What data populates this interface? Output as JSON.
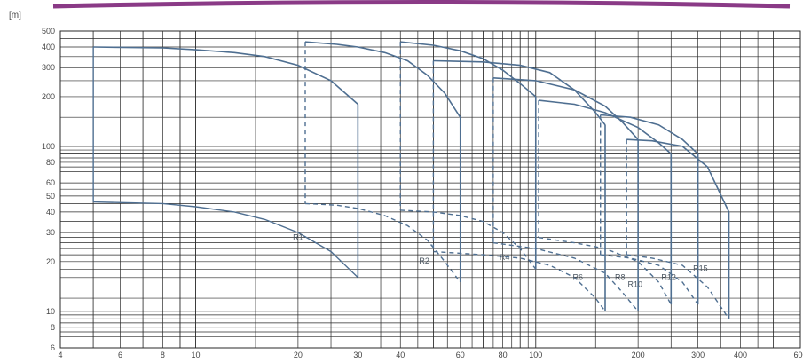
{
  "chart_data": {
    "type": "line",
    "title": "",
    "xlabel": "",
    "ylabel": "[m]",
    "x_scale": "log",
    "y_scale": "log",
    "xlim": [
      4,
      600
    ],
    "ylim": [
      6,
      500
    ],
    "x_ticks": [
      4,
      6,
      8,
      10,
      20,
      30,
      40,
      60,
      80,
      100,
      200,
      300,
      400,
      600
    ],
    "y_ticks": [
      6,
      8,
      10,
      20,
      30,
      40,
      50,
      60,
      80,
      100,
      200,
      300,
      400,
      500
    ],
    "grid": true,
    "legend": "none",
    "header_bar_color": "#8a3a86",
    "curve_color": "#4f6f91",
    "grid_color": "#2a2a2a",
    "series": [
      {
        "name": "R1",
        "label_at": [
          20,
          27
        ],
        "upper": {
          "x": [
            5,
            8,
            10,
            13,
            16,
            20,
            25,
            30
          ],
          "y": [
            400,
            395,
            385,
            370,
            350,
            310,
            250,
            180
          ]
        },
        "lower": {
          "x": [
            5,
            8,
            10,
            13,
            16,
            20,
            25,
            30
          ],
          "y": [
            46,
            45,
            43,
            40,
            36,
            30,
            23,
            16
          ]
        }
      },
      {
        "name": "R2",
        "label_at": [
          47,
          19.5
        ],
        "upper": {
          "x": [
            21,
            26,
            30,
            36,
            42,
            48,
            54,
            60
          ],
          "y": [
            430,
            415,
            400,
            370,
            330,
            270,
            210,
            150
          ]
        },
        "lower": {
          "x": [
            21,
            26,
            30,
            36,
            42,
            48,
            54,
            60
          ],
          "y": [
            45,
            44,
            42,
            38,
            33,
            27,
            20,
            15
          ]
        },
        "lower_dashed": true
      },
      {
        "name": "R4",
        "label_at": [
          81,
          20.5
        ],
        "upper": {
          "x": [
            40,
            50,
            60,
            70,
            80,
            90,
            100
          ],
          "y": [
            430,
            410,
            380,
            340,
            290,
            240,
            200
          ]
        },
        "lower": {
          "x": [
            40,
            50,
            60,
            70,
            80,
            90,
            100
          ],
          "y": [
            41,
            40,
            38,
            35,
            30,
            24,
            18
          ]
        },
        "lower_dashed": true
      },
      {
        "name": "R6",
        "label_at": [
          133,
          15.5
        ],
        "upper": {
          "x": [
            50,
            70,
            90,
            110,
            130,
            150,
            160
          ],
          "y": [
            330,
            325,
            310,
            280,
            220,
            160,
            135
          ]
        },
        "lower": {
          "x": [
            50,
            70,
            90,
            110,
            130,
            150,
            160
          ],
          "y": [
            23,
            22,
            21,
            19,
            16,
            12,
            10
          ]
        },
        "dashed_sides": true
      },
      {
        "name": "R8",
        "label_at": [
          177,
          15.5
        ],
        "upper": {
          "x": [
            75,
            100,
            130,
            160,
            180,
            200
          ],
          "y": [
            260,
            250,
            220,
            175,
            140,
            110
          ]
        },
        "lower": {
          "x": [
            75,
            100,
            130,
            160,
            180,
            200
          ],
          "y": [
            26,
            24,
            21,
            17,
            13,
            10
          ]
        },
        "dashed_sides": true
      },
      {
        "name": "R10",
        "label_at": [
          196,
          14
        ],
        "upper": {
          "x": [
            102,
            130,
            160,
            200,
            230,
            250
          ],
          "y": [
            190,
            180,
            160,
            130,
            105,
            90
          ]
        },
        "lower": {
          "x": [
            102,
            130,
            160,
            200,
            230,
            250
          ],
          "y": [
            28,
            26,
            24,
            20,
            15,
            11
          ]
        },
        "dashed_sides": true
      },
      {
        "name": "R12",
        "label_at": [
          246,
          15.5
        ],
        "upper": {
          "x": [
            155,
            190,
            230,
            270,
            300
          ],
          "y": [
            155,
            150,
            135,
            110,
            90
          ]
        },
        "lower": {
          "x": [
            155,
            190,
            230,
            270,
            300
          ],
          "y": [
            22,
            21,
            19,
            15,
            11
          ]
        },
        "dashed_sides": true
      },
      {
        "name": "R15",
        "label_at": [
          305,
          17.5
        ],
        "upper": {
          "x": [
            185,
            220,
            270,
            320,
            370
          ],
          "y": [
            110,
            108,
            100,
            75,
            40
          ]
        },
        "lower": {
          "x": [
            185,
            220,
            270,
            320,
            370
          ],
          "y": [
            22,
            21,
            19,
            14,
            9
          ]
        },
        "dashed_sides": true
      }
    ]
  }
}
